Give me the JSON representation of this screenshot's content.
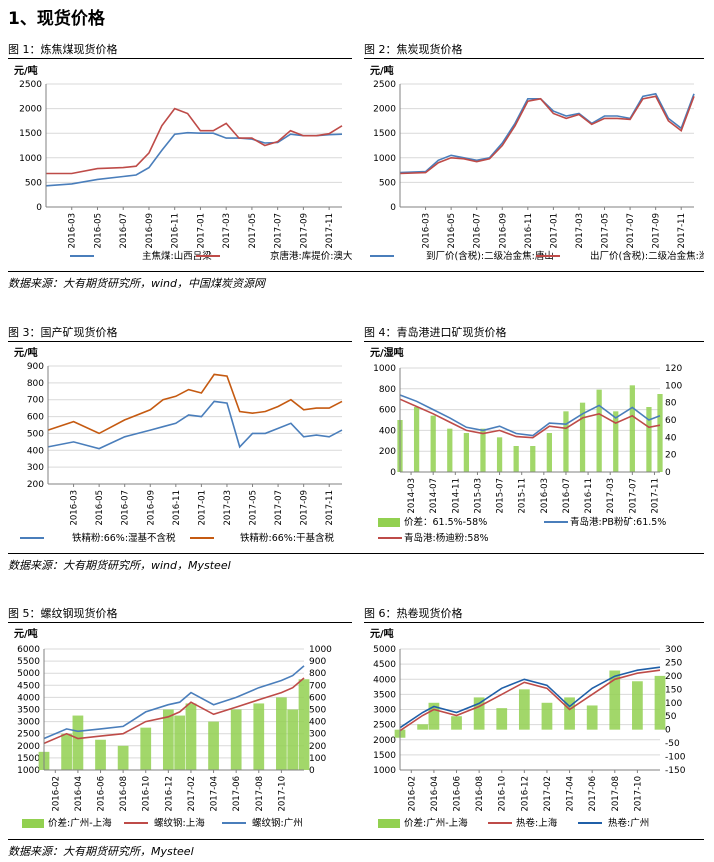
{
  "heading": "1、现货价格",
  "sources": {
    "row1": "数据来源：大有期货研究所，wind，中国煤炭资源网",
    "row2": "数据来源：大有期货研究所，wind，Mysteel",
    "row3": "数据来源：大有期货研究所，Mysteel"
  },
  "charts": [
    {
      "caption": "图 1：炼焦煤现货价格",
      "chart_data": {
        "type": "line",
        "unit_label": "元/吨",
        "x": [
          "2016-01",
          "2016-03",
          "2016-05",
          "2016-07",
          "2016-08",
          "2016-09",
          "2016-10",
          "2016-11",
          "2016-12",
          "2017-01",
          "2017-02",
          "2017-03",
          "2017-04",
          "2017-05",
          "2017-06",
          "2017-07",
          "2017-08",
          "2017-09",
          "2017-10",
          "2017-11",
          "2017-12"
        ],
        "x_tick_labels": [
          "2016-03",
          "2016-05",
          "2016-07",
          "2016-09",
          "2016-11",
          "2017-01",
          "2017-03",
          "2017-05",
          "2017-07",
          "2017-09",
          "2017-11"
        ],
        "ylim": [
          0,
          2500
        ],
        "y_ticks": [
          0,
          500,
          1000,
          1500,
          2000,
          2500
        ],
        "series": [
          {
            "name": "主焦煤:山西吕梁",
            "color": "#4a7ebb",
            "values": [
              430,
              470,
              560,
              620,
              650,
              800,
              1150,
              1480,
              1510,
              1500,
              1500,
              1400,
              1400,
              1380,
              1300,
              1310,
              1480,
              1450,
              1450,
              1470,
              1480
            ]
          },
          {
            "name": "京唐港:库提价:澳大利亚产",
            "color": "#be4b48",
            "values": [
              680,
              680,
              780,
              800,
              830,
              1100,
              1650,
              2000,
              1900,
              1550,
              1550,
              1700,
              1400,
              1400,
              1250,
              1330,
              1550,
              1450,
              1450,
              1490,
              1650
            ]
          }
        ],
        "grid": "horizontal",
        "legend": "bottom"
      }
    },
    {
      "caption": "图 2：焦炭现货价格",
      "chart_data": {
        "type": "line",
        "unit_label": "元/吨",
        "x": [
          "2016-01",
          "2016-03",
          "2016-04",
          "2016-05",
          "2016-06",
          "2016-07",
          "2016-08",
          "2016-09",
          "2016-10",
          "2016-11",
          "2016-12",
          "2017-01",
          "2017-02",
          "2017-03",
          "2017-04",
          "2017-05",
          "2017-06",
          "2017-07",
          "2017-08",
          "2017-09",
          "2017-10",
          "2017-11",
          "2017-12"
        ],
        "x_tick_labels": [
          "2016-03",
          "2016-05",
          "2016-07",
          "2016-09",
          "2016-11",
          "2017-01",
          "2017-03",
          "2017-05",
          "2017-07",
          "2017-09",
          "2017-11"
        ],
        "ylim": [
          0,
          2500
        ],
        "y_ticks": [
          0,
          500,
          1000,
          1500,
          2000,
          2500
        ],
        "series": [
          {
            "name": "到厂价(含税):二级冶金焦:唐山",
            "color": "#4a7ebb",
            "values": [
              700,
              720,
              950,
              1050,
              1000,
              950,
              1000,
              1300,
              1700,
              2200,
              2200,
              1950,
              1850,
              1900,
              1700,
              1850,
              1850,
              1800,
              2250,
              2300,
              1800,
              1600,
              2300
            ]
          },
          {
            "name": "出厂价(含税):二级冶金焦:潍坊",
            "color": "#be4b48",
            "values": [
              680,
              700,
              900,
              1000,
              980,
              920,
              980,
              1250,
              1650,
              2150,
              2200,
              1900,
              1800,
              1880,
              1680,
              1800,
              1800,
              1780,
              2200,
              2250,
              1750,
              1550,
              2250
            ]
          }
        ],
        "grid": "horizontal",
        "legend": "bottom"
      }
    },
    {
      "caption": "图 3：国产矿现货价格",
      "chart_data": {
        "type": "line",
        "unit_label": "元/吨",
        "x": [
          "2016-01",
          "2016-03",
          "2016-05",
          "2016-07",
          "2016-09",
          "2016-10",
          "2016-11",
          "2016-12",
          "2017-01",
          "2017-02",
          "2017-03",
          "2017-04",
          "2017-05",
          "2017-06",
          "2017-07",
          "2017-08",
          "2017-09",
          "2017-10",
          "2017-11",
          "2017-12"
        ],
        "x_tick_labels": [
          "2016-03",
          "2016-05",
          "2016-07",
          "2016-09",
          "2016-11",
          "2017-01",
          "2017-03",
          "2017-05",
          "2017-07",
          "2017-09",
          "2017-11"
        ],
        "ylim": [
          200,
          900
        ],
        "y_ticks": [
          200,
          300,
          400,
          500,
          600,
          700,
          800,
          900
        ],
        "series": [
          {
            "name": "铁精粉:66%:湿基不含税",
            "color": "#4a7ebb",
            "values": [
              420,
              450,
              410,
              480,
              520,
              540,
              560,
              610,
              600,
              690,
              680,
              420,
              500,
              500,
              530,
              560,
              480,
              490,
              480,
              520
            ]
          },
          {
            "name": "铁精粉:66%:干基含税",
            "color": "#c55a11",
            "values": [
              520,
              570,
              500,
              580,
              640,
              700,
              720,
              760,
              740,
              850,
              840,
              630,
              620,
              630,
              660,
              700,
              640,
              650,
              650,
              690
            ]
          }
        ],
        "grid": "horizontal",
        "legend": "bottom"
      }
    },
    {
      "caption": "图 4：青岛港进口矿现货价格",
      "chart_data": {
        "type": "line+bar",
        "unit_label": "元/湿吨",
        "x": [
          "2014-01",
          "2014-04",
          "2014-07",
          "2014-10",
          "2015-01",
          "2015-04",
          "2015-07",
          "2015-10",
          "2016-01",
          "2016-04",
          "2016-07",
          "2016-10",
          "2017-01",
          "2017-04",
          "2017-07",
          "2017-10",
          "2017-12"
        ],
        "x_tick_labels": [
          "2014-03",
          "2014-07",
          "2014-11",
          "2015-03",
          "2015-07",
          "2015-11",
          "2016-03",
          "2016-07",
          "2016-11",
          "2017-03",
          "2017-07",
          "2017-11"
        ],
        "ylim": [
          0,
          1000
        ],
        "y_ticks": [
          0,
          200,
          400,
          600,
          800,
          1000
        ],
        "y2lim": [
          0,
          120
        ],
        "y2_ticks": [
          0,
          20,
          40,
          60,
          80,
          100,
          120
        ],
        "series": [
          {
            "name": "价差：61.5%-58%",
            "color": "#92d050",
            "axis": "right",
            "type": "bar",
            "values": [
              60,
              75,
              65,
              50,
              45,
              50,
              40,
              30,
              30,
              45,
              70,
              80,
              95,
              70,
              100,
              75,
              90
            ]
          },
          {
            "name": "青岛港:PB粉矿:61.5%",
            "color": "#4a7ebb",
            "axis": "left",
            "values": [
              740,
              680,
              600,
              520,
              430,
              400,
              440,
              370,
              350,
              470,
              460,
              560,
              640,
              520,
              620,
              500,
              540
            ]
          },
          {
            "name": "青岛港:杨迪粉:58%",
            "color": "#be4b48",
            "axis": "left",
            "values": [
              700,
              630,
              560,
              480,
              400,
              370,
              400,
              340,
              330,
              440,
              420,
              520,
              560,
              470,
              540,
              430,
              450
            ]
          }
        ],
        "grid": "horizontal",
        "legend": "bottom"
      }
    },
    {
      "caption": "图 5：螺纹钢现货价格",
      "chart_data": {
        "type": "line+bar",
        "unit_label": "元/吨",
        "x": [
          "2016-01",
          "2016-03",
          "2016-04",
          "2016-06",
          "2016-08",
          "2016-10",
          "2016-12",
          "2017-01",
          "2017-02",
          "2017-04",
          "2017-06",
          "2017-08",
          "2017-10",
          "2017-11",
          "2017-12"
        ],
        "x_tick_labels": [
          "2016-02",
          "2016-04",
          "2016-06",
          "2016-08",
          "2016-10",
          "2016-12",
          "2017-02",
          "2017-04",
          "2017-06",
          "2017-08",
          "2017-10"
        ],
        "ylim": [
          1000,
          6000
        ],
        "y_ticks": [
          1000,
          1500,
          2000,
          2500,
          3000,
          3500,
          4000,
          4500,
          5000,
          5500,
          6000
        ],
        "y2lim": [
          0,
          1000
        ],
        "y2_ticks": [
          0,
          100,
          200,
          300,
          400,
          500,
          600,
          700,
          800,
          900,
          1000
        ],
        "series": [
          {
            "name": "价差:广州-上海",
            "color": "#92d050",
            "axis": "right",
            "type": "bar",
            "values": [
              150,
              300,
              450,
              250,
              200,
              350,
              500,
              450,
              550,
              400,
              500,
              550,
              600,
              500,
              750
            ]
          },
          {
            "name": "螺纹钢:上海",
            "color": "#be4b48",
            "axis": "left",
            "values": [
              2100,
              2500,
              2300,
              2400,
              2500,
              3000,
              3200,
              3400,
              3800,
              3300,
              3600,
              3900,
              4200,
              4400,
              4800
            ]
          },
          {
            "name": "螺纹钢:广州",
            "color": "#4a7ebb",
            "axis": "left",
            "values": [
              2300,
              2700,
              2600,
              2700,
              2800,
              3400,
              3700,
              3800,
              4200,
              3700,
              4000,
              4400,
              4700,
              4900,
              5300
            ]
          }
        ],
        "grid": "horizontal",
        "legend": "bottom"
      }
    },
    {
      "caption": "图 6：热卷现货价格",
      "chart_data": {
        "type": "line+bar",
        "unit_label": "元/吨",
        "x": [
          "2016-01",
          "2016-03",
          "2016-04",
          "2016-06",
          "2016-08",
          "2016-10",
          "2016-12",
          "2017-02",
          "2017-04",
          "2017-06",
          "2017-08",
          "2017-10",
          "2017-12"
        ],
        "x_tick_labels": [
          "2016-02",
          "2016-04",
          "2016-06",
          "2016-08",
          "2016-10",
          "2016-12",
          "2017-02",
          "2017-04",
          "2017-06",
          "2017-08",
          "2017-10"
        ],
        "ylim": [
          1000,
          5000
        ],
        "y_ticks": [
          1000,
          1500,
          2000,
          2500,
          3000,
          3500,
          4000,
          4500,
          5000
        ],
        "y2lim": [
          -150,
          300
        ],
        "y2_ticks": [
          -150,
          -100,
          -50,
          0,
          50,
          100,
          150,
          200,
          250,
          300
        ],
        "series": [
          {
            "name": "价差:广州-上海",
            "color": "#92d050",
            "axis": "right",
            "type": "bar",
            "values": [
              -30,
              20,
              100,
              50,
              120,
              80,
              150,
              100,
              120,
              90,
              220,
              180,
              200
            ]
          },
          {
            "name": "热卷:上海",
            "color": "#be4b48",
            "axis": "left",
            "values": [
              2300,
              2800,
              3000,
              2800,
              3100,
              3500,
              3900,
              3700,
              3000,
              3500,
              4000,
              4200,
              4300
            ]
          },
          {
            "name": "热卷:广州",
            "color": "#1f5fa8",
            "axis": "left",
            "values": [
              2400,
              2900,
              3100,
              2900,
              3200,
              3700,
              4000,
              3800,
              3100,
              3700,
              4100,
              4300,
              4400
            ]
          }
        ],
        "grid": "horizontal",
        "legend": "bottom"
      }
    }
  ]
}
